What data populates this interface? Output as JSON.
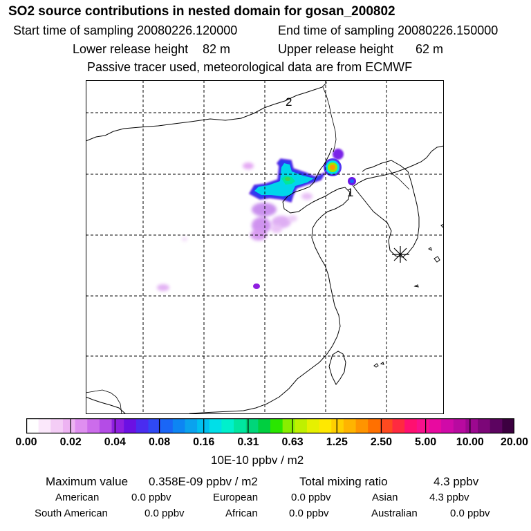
{
  "header": {
    "title": "SO2 source contributions in nested domain for gosan_200802",
    "start_label": "Start time of sampling 20080226.120000",
    "end_label": "End time of sampling 20080226.150000",
    "lower_label": "Lower release height",
    "lower_value": "82 m",
    "upper_label": "Upper release height",
    "upper_value": "62 m",
    "note": "Passive tracer used, meteorological data are from ECMWF"
  },
  "map": {
    "markers": [
      {
        "label": "1"
      },
      {
        "label": "2"
      }
    ]
  },
  "colorbar": {
    "tick_labels": [
      "0.00",
      "0.02",
      "0.04",
      "0.08",
      "0.16",
      "0.31",
      "0.63",
      "1.25",
      "2.50",
      "5.00",
      "10.00",
      "20.00"
    ],
    "unit": "10E-10 ppbv / m2",
    "colors": [
      "#ffffff",
      "#fbe8fb",
      "#f4cdf6",
      "#edb3f2",
      "#df8ff0",
      "#cc6ceb",
      "#b44ce6",
      "#8f1fe0",
      "#6b10e3",
      "#4a2cf0",
      "#2f49f4",
      "#1a66f6",
      "#0d85f3",
      "#0aa2ee",
      "#00c0f0",
      "#00dfe8",
      "#00f0cc",
      "#00e6a0",
      "#00d67a",
      "#00cf40",
      "#2ae600",
      "#88ee00",
      "#bff000",
      "#e6f000",
      "#ffe800",
      "#ffd000",
      "#ffb400",
      "#ff9400",
      "#ff7000",
      "#ff4a20",
      "#ff2a40",
      "#ff1070",
      "#f8108c",
      "#e80aa0",
      "#d00aa8",
      "#b80aa0",
      "#9c0890",
      "#7c0678",
      "#5c0460",
      "#3c0040"
    ]
  },
  "summary": {
    "max_label": "Maximum value",
    "max_value": "0.358E-09 ppbv / m2",
    "total_label": "Total mixing ratio",
    "total_value": "4.3 ppbv",
    "regions": [
      {
        "name": "American",
        "value": "0.0 ppbv"
      },
      {
        "name": "European",
        "value": "0.0 ppbv"
      },
      {
        "name": "Asian",
        "value": "4.3 ppbv"
      },
      {
        "name": "South American",
        "value": "0.0 ppbv"
      },
      {
        "name": "African",
        "value": "0.0 ppbv"
      },
      {
        "name": "Australian",
        "value": "0.0 ppbv"
      }
    ]
  }
}
